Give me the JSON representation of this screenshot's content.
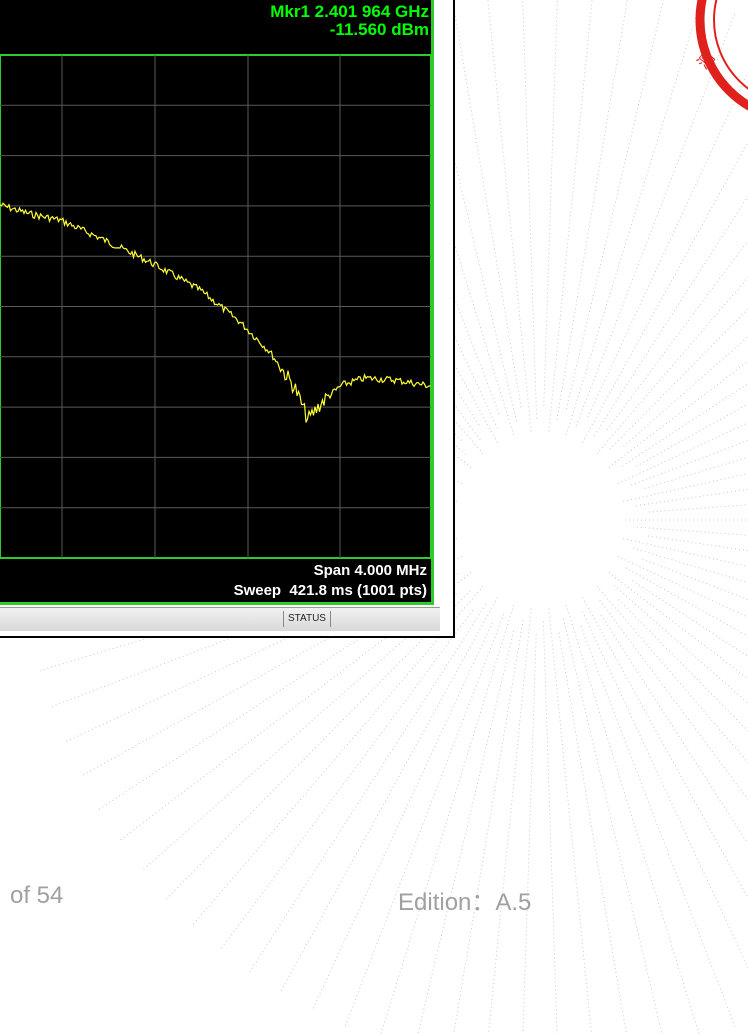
{
  "instrument": {
    "marker": {
      "frequency": "Mkr1 2.401 964 GHz",
      "level": "-11.560 dBm"
    },
    "span": "Span 4.000 MHz",
    "sweep": "Sweep  421.8 ms (1001 pts)",
    "status": "STATUS"
  },
  "footer": {
    "page": "of 54",
    "edition": "Edition：A.5"
  }
}
